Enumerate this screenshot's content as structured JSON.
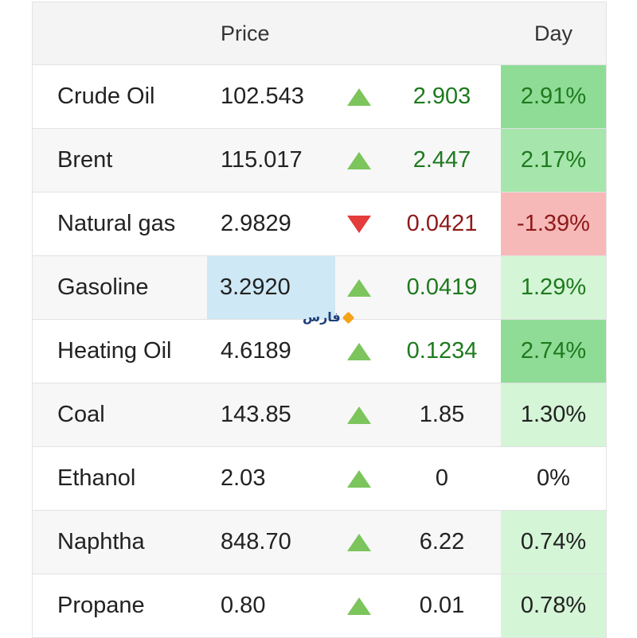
{
  "header": {
    "price_label": "Price",
    "day_label": "Day"
  },
  "watermark": {
    "text": "فارس",
    "accent_color": "#f5a31a"
  },
  "colors": {
    "up": "#7bc55c",
    "down": "#e43b3b",
    "positive_text": "#1e7a1e",
    "negative_text": "#8e1a1a",
    "highlight": "#cfe8f6"
  },
  "rows": [
    {
      "name": "Crude Oil",
      "price": "102.543",
      "direction": "up",
      "change": "2.903",
      "day": "2.91%"
    },
    {
      "name": "Brent",
      "price": "115.017",
      "direction": "up",
      "change": "2.447",
      "day": "2.17%"
    },
    {
      "name": "Natural gas",
      "price": "2.9829",
      "direction": "down",
      "change": "0.0421",
      "day": "-1.39%"
    },
    {
      "name": "Gasoline",
      "price": "3.2920",
      "direction": "up",
      "change": "0.0419",
      "day": "1.29%"
    },
    {
      "name": "Heating Oil",
      "price": "4.6189",
      "direction": "up",
      "change": "0.1234",
      "day": "2.74%"
    },
    {
      "name": "Coal",
      "price": "143.85",
      "direction": "up",
      "change": "1.85",
      "day": "1.30%"
    },
    {
      "name": "Ethanol",
      "price": "2.03",
      "direction": "up",
      "change": "0",
      "day": "0%"
    },
    {
      "name": "Naphtha",
      "price": "848.70",
      "direction": "up",
      "change": "6.22",
      "day": "0.74%"
    },
    {
      "name": "Propane",
      "price": "0.80",
      "direction": "up",
      "change": "0.01",
      "day": "0.78%"
    }
  ]
}
